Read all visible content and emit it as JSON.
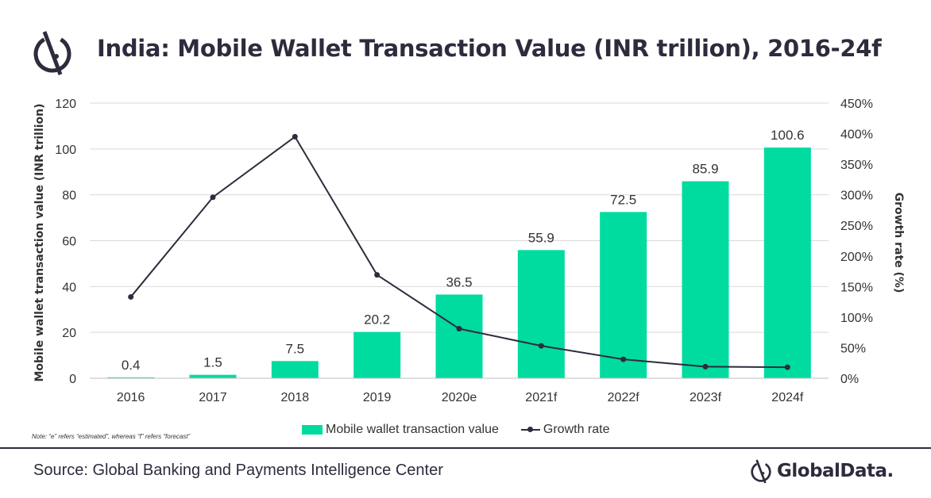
{
  "header": {
    "title": "India: Mobile Wallet Transaction Value (INR trillion), 2016-24f",
    "logo_icon": "globaldata-symbol-icon"
  },
  "chart_data": {
    "type": "bar",
    "categories": [
      "2016",
      "2017",
      "2018",
      "2019",
      "2020e",
      "2021f",
      "2022f",
      "2023f",
      "2024f"
    ],
    "series": [
      {
        "name": "Mobile wallet transaction value",
        "type": "bar",
        "axis": "left",
        "color": "#00dba0",
        "values": [
          0.4,
          1.5,
          7.5,
          20.2,
          36.5,
          55.9,
          72.5,
          85.9,
          100.6
        ],
        "labels": [
          "0.4",
          "1.5",
          "7.5",
          "20.2",
          "36.5",
          "55.9",
          "72.5",
          "85.9",
          "100.6"
        ]
      },
      {
        "name": "Growth rate",
        "type": "line",
        "axis": "right",
        "color": "#2e2b3d",
        "values": [
          133,
          296,
          395,
          169,
          81,
          53,
          31,
          19,
          18
        ]
      }
    ],
    "ylabel": "Mobile wallet transaction value (INR trillion)",
    "y2label": "Growth rate (%)",
    "ylim": [
      0,
      120
    ],
    "y2lim": [
      0,
      450
    ],
    "yticks": [
      "0",
      "20",
      "40",
      "60",
      "80",
      "100",
      "120"
    ],
    "y2ticks": [
      "0%",
      "50%",
      "100%",
      "150%",
      "200%",
      "250%",
      "300%",
      "350%",
      "400%",
      "450%"
    ],
    "grid": "horizontal",
    "legend": "bottom"
  },
  "note": "Note: “e” refers “estimated”, whereas “f” refers “forecast”",
  "footer": {
    "source": "Source: Global Banking and Payments Intelligence Center",
    "brand": "GlobalData.",
    "brand_icon": "globaldata-symbol-icon"
  }
}
